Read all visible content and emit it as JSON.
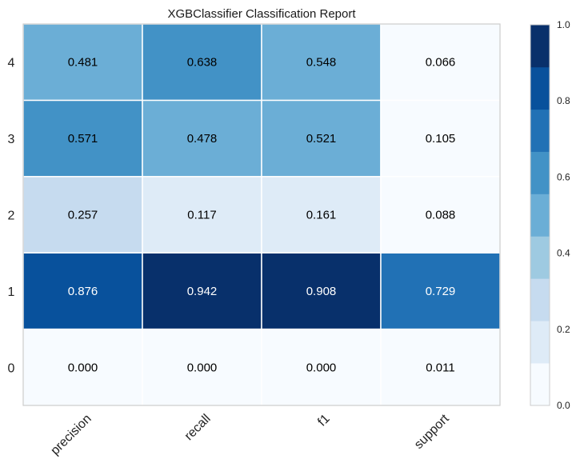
{
  "chart_data": {
    "type": "heatmap",
    "title": "XGBClassifier Classification Report",
    "xlabel": "",
    "ylabel": "",
    "columns": [
      "precision",
      "recall",
      "f1",
      "support"
    ],
    "rows": [
      "0",
      "1",
      "2",
      "3",
      "4"
    ],
    "values": [
      [
        0.0,
        0.0,
        0.0,
        0.011
      ],
      [
        0.876,
        0.942,
        0.908,
        0.729
      ],
      [
        0.257,
        0.117,
        0.161,
        0.088
      ],
      [
        0.571,
        0.478,
        0.521,
        0.105
      ],
      [
        0.481,
        0.638,
        0.548,
        0.066
      ]
    ],
    "labels": [
      [
        "0.000",
        "0.000",
        "0.000",
        "0.011"
      ],
      [
        "0.876",
        "0.942",
        "0.908",
        "0.729"
      ],
      [
        "0.257",
        "0.117",
        "0.161",
        "0.088"
      ],
      [
        "0.571",
        "0.478",
        "0.521",
        "0.105"
      ],
      [
        "0.481",
        "0.638",
        "0.548",
        "0.066"
      ]
    ],
    "vmin": 0.0,
    "vmax": 1.0,
    "colorbar_ticks": [
      "0.0",
      "0.2",
      "0.4",
      "0.6",
      "0.8",
      "1.0"
    ],
    "colormap_bins": [
      "#f7fbff",
      "#deebf7",
      "#c6dbef",
      "#9ecae1",
      "#6baed6",
      "#4292c6",
      "#2171b5",
      "#08519c",
      "#08306b"
    ],
    "dark_text_color": "#000000",
    "light_text_color": "#ffffff",
    "grid": false,
    "legend": "colorbar-right"
  }
}
